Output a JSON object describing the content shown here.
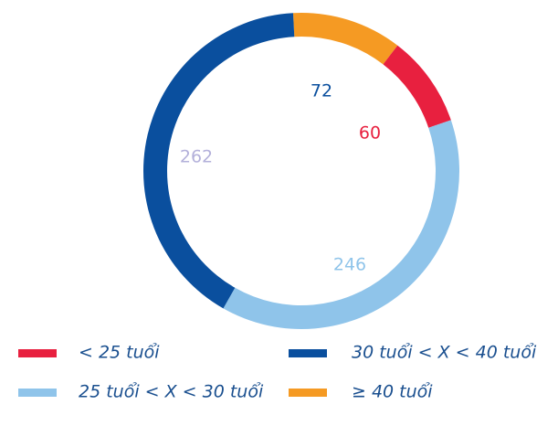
{
  "chart_data": {
    "type": "donut",
    "categories": [
      "< 25 tuổi",
      "30 tuổi < X < 40 tuổi",
      "25 tuổi < X < 30 tuổi",
      "≥ 40 tuổi"
    ],
    "values": [
      60,
      262,
      246,
      72
    ],
    "colors": [
      "#e8203f",
      "#0a4f9e",
      "#8fc4ea",
      "#f59a23"
    ],
    "label_colors": [
      "#e8203f",
      "#b3b0da",
      "#8fc4ea",
      "#0a4f9e"
    ]
  }
}
